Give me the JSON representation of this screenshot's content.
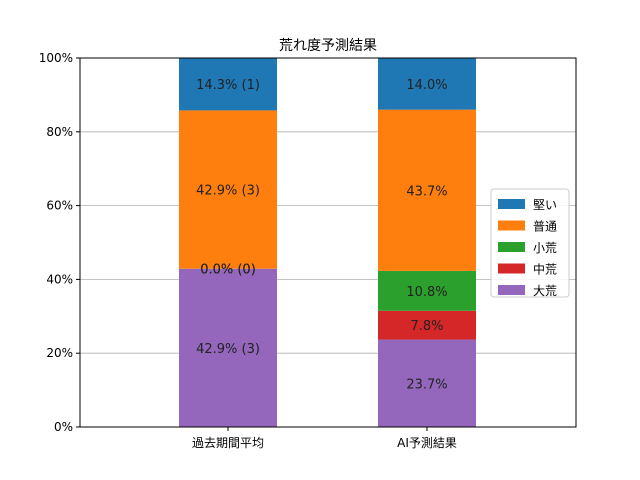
{
  "chart_data": {
    "type": "bar",
    "stacked": true,
    "title": "荒れ度予測結果",
    "xlabel": "",
    "ylabel": "",
    "ylim": [
      0,
      100
    ],
    "y_ticks": [
      "0%",
      "20%",
      "40%",
      "60%",
      "80%",
      "100%"
    ],
    "categories": [
      "過去期間平均",
      "AI予測結果"
    ],
    "grid": "horizontal",
    "legend_position": "right",
    "series": [
      {
        "name": "大荒",
        "color": "#9467bd",
        "values": [
          42.9,
          23.7
        ],
        "labels": [
          "42.9% (3)",
          "23.7%"
        ]
      },
      {
        "name": "中荒",
        "color": "#d62728",
        "values": [
          0.0,
          7.8
        ],
        "labels": [
          "0.0% (0)",
          "7.8%"
        ]
      },
      {
        "name": "小荒",
        "color": "#2ca02c",
        "values": [
          0.0,
          10.8
        ],
        "labels": [
          "0.0% (0)",
          "10.8%"
        ]
      },
      {
        "name": "普通",
        "color": "#ff7f0e",
        "values": [
          42.9,
          43.7
        ],
        "labels": [
          "42.9% (3)",
          "43.7%"
        ]
      },
      {
        "name": "堅い",
        "color": "#1f77b4",
        "values": [
          14.3,
          14.0
        ],
        "labels": [
          "14.3% (1)",
          "14.0%"
        ]
      }
    ],
    "legend_order": [
      "堅い",
      "普通",
      "小荒",
      "中荒",
      "大荒"
    ]
  }
}
